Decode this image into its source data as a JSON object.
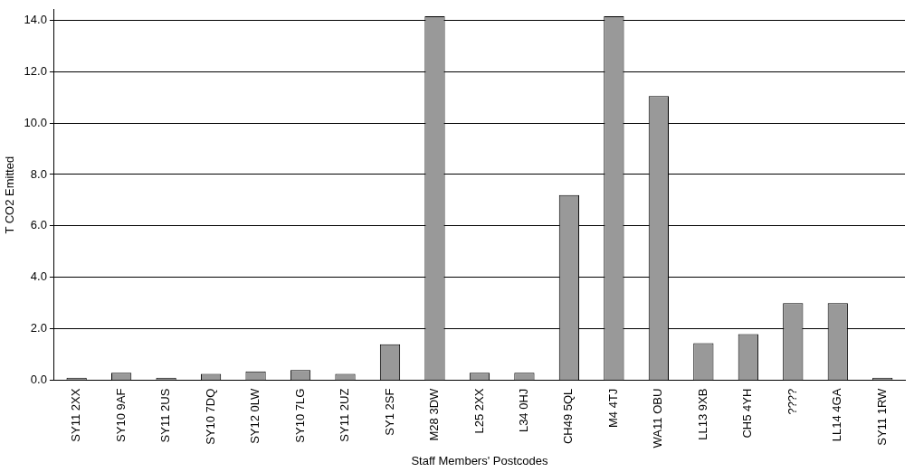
{
  "chart_data": {
    "type": "bar",
    "xlabel": "Staff Members' Postcodes",
    "ylabel": "T CO2 Emitted",
    "categories": [
      "SY11 2XX",
      "SY10 9AF",
      "SY11 2US",
      "SY10 7DQ",
      "SY12 0LW",
      "SY10 7LG",
      "SY11 2UZ",
      "SY1 2SF",
      "M28 3DW",
      "L25 2XX",
      "L34 0HJ",
      "CH49 5QL",
      "M4 4TJ",
      "WA11 OBU",
      "LL13 9XB",
      "CH5 4YH",
      "????",
      "LL14 4GA",
      "SY11 1RW"
    ],
    "values": [
      0.1,
      0.3,
      0.1,
      0.25,
      0.35,
      0.4,
      0.25,
      1.4,
      14.15,
      0.3,
      0.3,
      7.2,
      14.15,
      11.05,
      1.45,
      1.8,
      3.0,
      3.0,
      0.1
    ],
    "color": "#999999",
    "ylim": [
      0,
      14.4
    ],
    "yticks": [
      {
        "value": 0,
        "label": "0.0"
      },
      {
        "value": 2,
        "label": "2.0"
      },
      {
        "value": 4,
        "label": "4.0"
      },
      {
        "value": 6,
        "label": "6.0"
      },
      {
        "value": 8,
        "label": "8.0"
      },
      {
        "value": 10,
        "label": "10.0"
      },
      {
        "value": 12,
        "label": "12.0"
      },
      {
        "value": 14,
        "label": "14.0"
      }
    ],
    "grid": "y",
    "legend": false
  }
}
